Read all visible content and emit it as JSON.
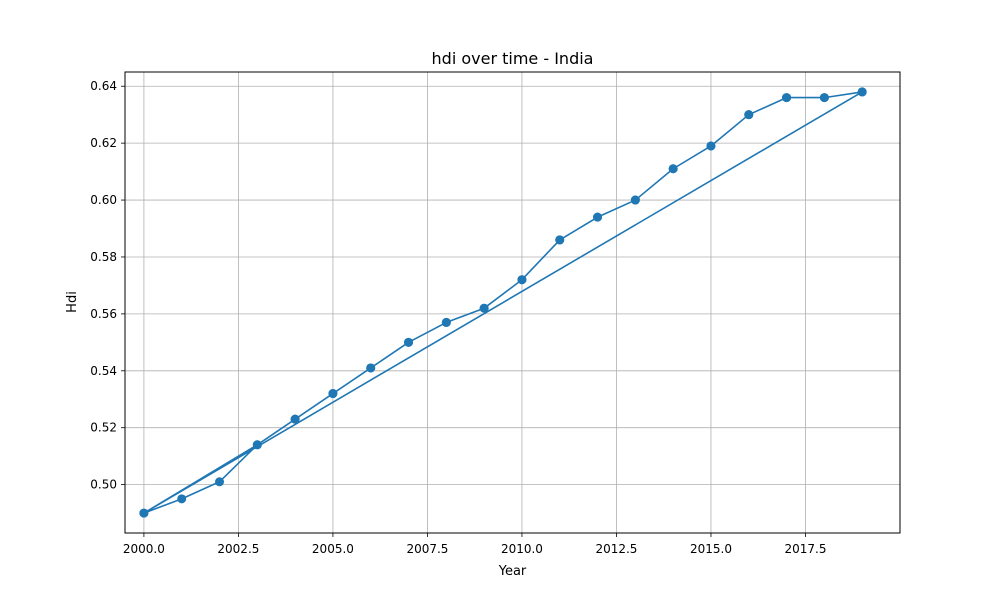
{
  "chart_data": {
    "type": "line",
    "title": "hdi over time - India",
    "xlabel": "Year",
    "ylabel": "Hdi",
    "xlim": [
      1999.5,
      2020.0
    ],
    "ylim": [
      0.483,
      0.645
    ],
    "xticks": [
      2000.0,
      2002.5,
      2005.0,
      2007.5,
      2010.0,
      2012.5,
      2015.0,
      2017.5
    ],
    "xtick_labels": [
      "2000.0",
      "2002.5",
      "2005.0",
      "2007.5",
      "2010.0",
      "2012.5",
      "2015.0",
      "2017.5"
    ],
    "yticks": [
      0.5,
      0.52,
      0.54,
      0.56,
      0.58,
      0.6,
      0.62,
      0.64
    ],
    "ytick_labels": [
      "0.50",
      "0.52",
      "0.54",
      "0.56",
      "0.58",
      "0.60",
      "0.62",
      "0.64"
    ],
    "grid": true,
    "color": "#1f77b4",
    "series": [
      {
        "x": [
          2000,
          2001,
          2002,
          2003,
          2004,
          2005,
          2006,
          2007,
          2008,
          2009,
          2010,
          2011,
          2012,
          2013,
          2014,
          2015,
          2016,
          2017,
          2018,
          2019,
          2000,
          2003,
          2004,
          2005,
          2006,
          2007,
          2008,
          2009,
          2010,
          2011,
          2012,
          2013,
          2014,
          2015,
          2016,
          2017,
          2018,
          2019
        ],
        "y": [
          0.49,
          0.495,
          0.501,
          0.514,
          0.523,
          0.532,
          0.541,
          0.55,
          0.557,
          0.562,
          0.572,
          0.586,
          0.594,
          0.6,
          0.611,
          0.619,
          0.63,
          0.636,
          0.636,
          0.638,
          0.49,
          0.514,
          0.523,
          0.532,
          0.541,
          0.55,
          0.557,
          0.562,
          0.572,
          0.586,
          0.594,
          0.6,
          0.611,
          0.619,
          0.63,
          0.636,
          0.636,
          0.638
        ]
      }
    ]
  }
}
